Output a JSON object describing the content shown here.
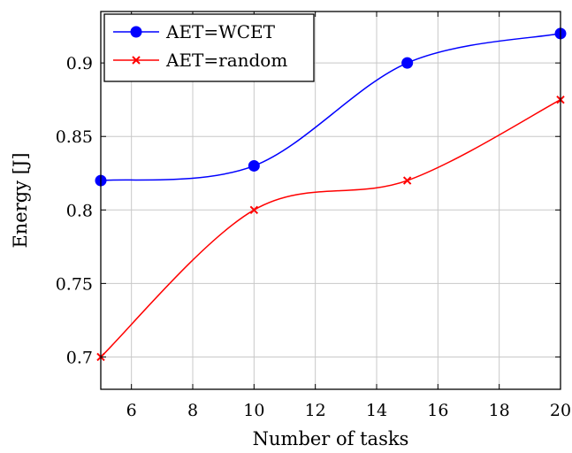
{
  "chart_data": {
    "type": "line",
    "title": "",
    "xlabel": "Number of tasks",
    "ylabel": "Energy [J]",
    "xlim": [
      5,
      20
    ],
    "ylim": [
      0.678,
      0.935
    ],
    "xticks": [
      6,
      8,
      10,
      12,
      14,
      16,
      18,
      20
    ],
    "yticks": [
      0.7,
      0.75,
      0.8,
      0.85,
      0.9
    ],
    "xtick_labels": [
      "6",
      "8",
      "10",
      "12",
      "14",
      "16",
      "18",
      "20"
    ],
    "ytick_labels": [
      "0.7",
      "0.75",
      "0.8",
      "0.85",
      "0.9"
    ],
    "grid": true,
    "legend_position": "top-left",
    "series": [
      {
        "name": "AET=WCET",
        "color": "#0000ff",
        "marker": "circle",
        "x": [
          5,
          10,
          15,
          20
        ],
        "y": [
          0.82,
          0.83,
          0.9,
          0.92
        ]
      },
      {
        "name": "AET=random",
        "color": "#ff0000",
        "marker": "x",
        "x": [
          5,
          10,
          15,
          20
        ],
        "y": [
          0.7,
          0.8,
          0.82,
          0.875
        ]
      }
    ]
  }
}
